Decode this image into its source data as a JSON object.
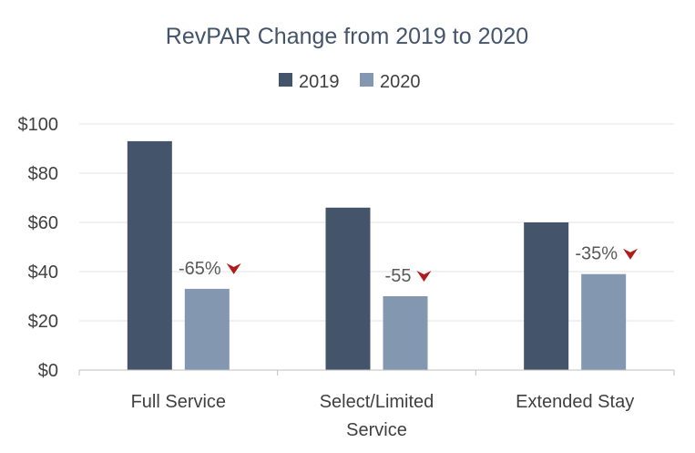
{
  "chart_data": {
    "type": "bar",
    "title": "RevPAR Change from 2019 to 2020",
    "categories": [
      [
        "Full Service"
      ],
      [
        "Select/Limited",
        "Service"
      ],
      [
        "Extended Stay"
      ]
    ],
    "series": [
      {
        "name": "2019",
        "color": "#44546a",
        "values": [
          93,
          66,
          60
        ]
      },
      {
        "name": "2020",
        "color": "#8497b0",
        "values": [
          33,
          30,
          39
        ]
      }
    ],
    "ylim": [
      0,
      100
    ],
    "yticks": [
      0,
      20,
      40,
      60,
      80,
      100
    ],
    "ytick_labels": [
      "$0",
      "$20",
      "$40",
      "$60",
      "$80",
      "$100"
    ],
    "grid": true,
    "legend_position": "top-center",
    "annotations": [
      {
        "category_index": 0,
        "text": "-65%",
        "arrow": "down",
        "arrow_color": "#b01c1c"
      },
      {
        "category_index": 1,
        "text": "-55",
        "arrow": "down",
        "arrow_color": "#b01c1c"
      },
      {
        "category_index": 2,
        "text": "-35%",
        "arrow": "down",
        "arrow_color": "#b01c1c"
      }
    ]
  }
}
